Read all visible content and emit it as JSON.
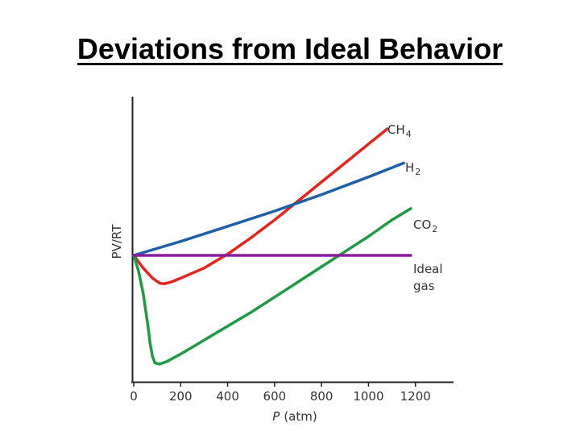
{
  "page": {
    "title": "Deviations from Ideal Behavior"
  },
  "chart_data": {
    "type": "line",
    "title": "Deviations from Ideal Behavior",
    "xlabel_prefix": "P",
    "xlabel_unit": "(atm)",
    "ylabel": "PV/RT",
    "xlim": [
      0,
      1400
    ],
    "ylim": [
      0,
      2.0
    ],
    "grid": false,
    "x_ticks": [
      {
        "value": 0,
        "label": "0"
      },
      {
        "value": 200,
        "label": "200"
      },
      {
        "value": 400,
        "label": "400"
      },
      {
        "value": 600,
        "label": "600"
      },
      {
        "value": 800,
        "label": "800"
      },
      {
        "value": 1000,
        "label": "1000"
      },
      {
        "value": 1200,
        "label": "1200"
      }
    ],
    "series": [
      {
        "name": "CH4",
        "label_base": "CH",
        "label_sub": "4",
        "color": "#e8231b",
        "x": [
          0,
          40,
          80,
          110,
          130,
          160,
          200,
          300,
          400,
          500,
          600,
          700,
          800,
          900,
          1000,
          1080
        ],
        "y": [
          1.0,
          0.9,
          0.82,
          0.78,
          0.775,
          0.79,
          0.82,
          0.9,
          1.01,
          1.14,
          1.28,
          1.43,
          1.58,
          1.73,
          1.88,
          2.0
        ]
      },
      {
        "name": "H2",
        "label_base": "H",
        "label_sub": "2",
        "color": "#1f5fa8",
        "x": [
          0,
          200,
          400,
          600,
          800,
          1000,
          1150
        ],
        "y": [
          1.0,
          1.11,
          1.23,
          1.35,
          1.48,
          1.62,
          1.73
        ]
      },
      {
        "name": "CO2",
        "label_base": "CO",
        "label_sub": "2",
        "color": "#1e9a45",
        "x": [
          0,
          20,
          40,
          60,
          70,
          80,
          90,
          110,
          140,
          200,
          300,
          400,
          500,
          600,
          700,
          800,
          900,
          1000,
          1100,
          1180
        ],
        "y": [
          1.0,
          0.88,
          0.7,
          0.45,
          0.3,
          0.2,
          0.15,
          0.14,
          0.16,
          0.22,
          0.33,
          0.44,
          0.55,
          0.67,
          0.79,
          0.91,
          1.03,
          1.15,
          1.28,
          1.37
        ]
      },
      {
        "name": "Ideal gas",
        "label_lines": [
          "Ideal",
          "gas"
        ],
        "color": "#8b1a9e",
        "x": [
          0,
          1180
        ],
        "y": [
          1.0,
          1.0
        ]
      }
    ]
  }
}
